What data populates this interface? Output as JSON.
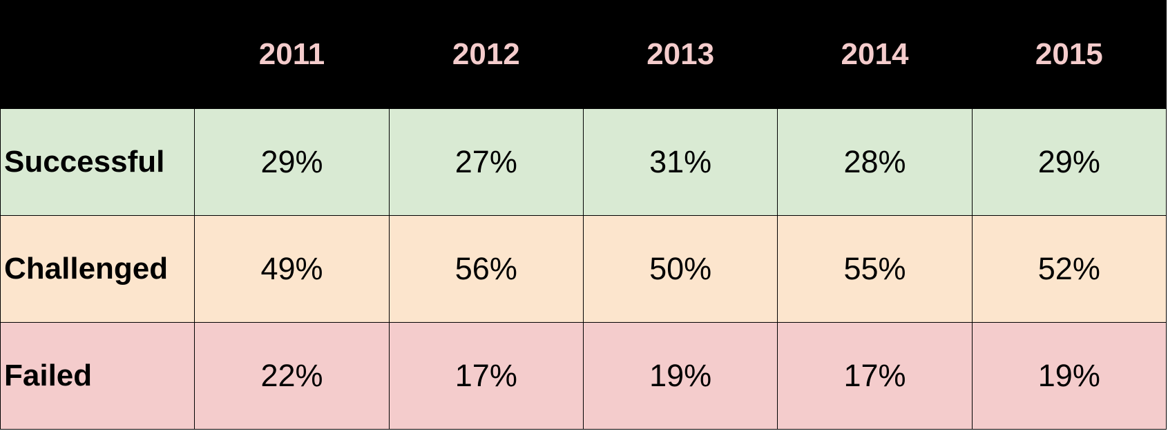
{
  "table": {
    "columns": [
      "",
      "2011",
      "2012",
      "2013",
      "2014",
      "2015"
    ],
    "rows": [
      {
        "label": "Successful",
        "values": [
          "29%",
          "27%",
          "31%",
          "28%",
          "29%"
        ]
      },
      {
        "label": "Challenged",
        "values": [
          "49%",
          "56%",
          "50%",
          "55%",
          "52%"
        ]
      },
      {
        "label": "Failed",
        "values": [
          "22%",
          "17%",
          "19%",
          "17%",
          "19%"
        ]
      }
    ],
    "colors": {
      "header_bg": "#000000",
      "header_text": "#f4cccc",
      "successful_bg": "#d9ead3",
      "challenged_bg": "#fce5cd",
      "failed_bg": "#f4cccc"
    }
  }
}
